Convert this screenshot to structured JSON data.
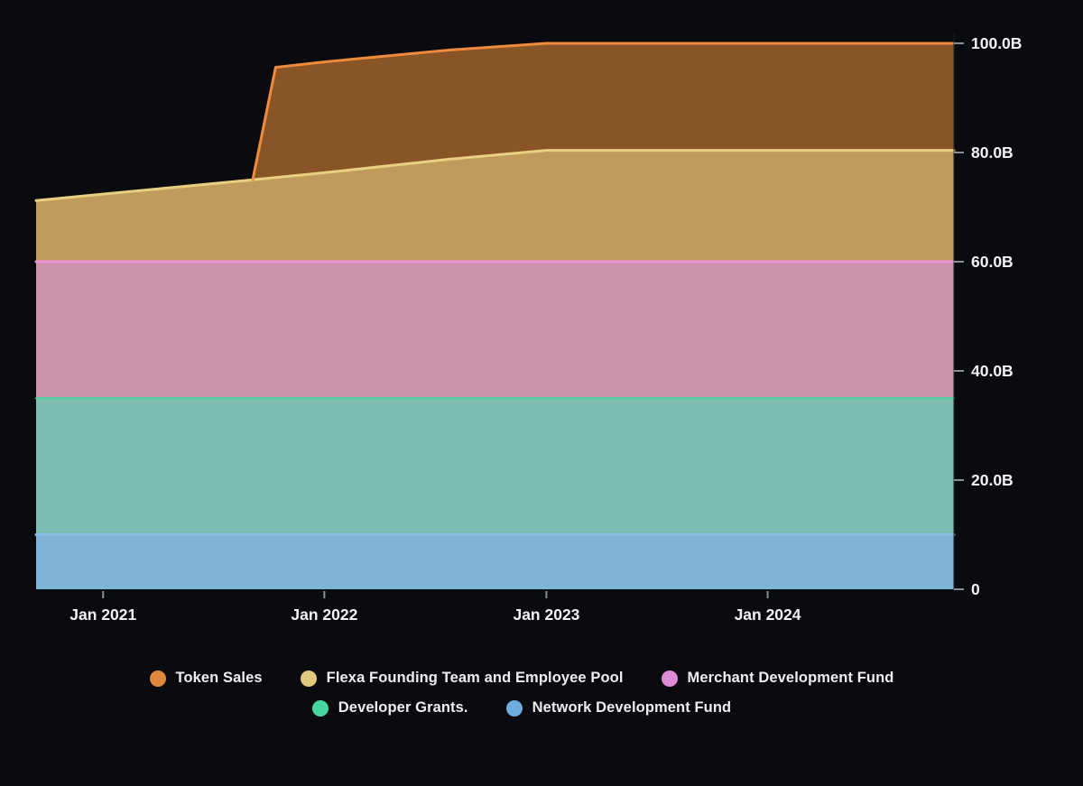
{
  "colors": {
    "background": "#0a0b0e",
    "axis_text": "#f1f3f4",
    "tick": "#8a9097",
    "axis_line": "#1d2024"
  },
  "chart_data": {
    "type": "area",
    "stacked": true,
    "title": "",
    "xlabel": "",
    "ylabel": "",
    "y_unit": "B",
    "ylim": [
      0,
      100
    ],
    "grid": false,
    "legend_position": "bottom",
    "y_axis_side": "right",
    "y_ticks": [
      {
        "value": 0,
        "label": "0"
      },
      {
        "value": 20,
        "label": "20.0B"
      },
      {
        "value": 40,
        "label": "40.0B"
      },
      {
        "value": 60,
        "label": "60.0B"
      },
      {
        "value": 80,
        "label": "80.0B"
      },
      {
        "value": 100,
        "label": "100.0B"
      }
    ],
    "x_ticks": [
      {
        "f": 0.073,
        "label": "Jan 2021"
      },
      {
        "f": 0.314,
        "label": "Jan 2022"
      },
      {
        "f": 0.556,
        "label": "Jan 2023"
      },
      {
        "f": 0.797,
        "label": "Jan 2024"
      }
    ],
    "baseline_rule": "each series stacks on the previous one; cumulative_top points are [x_fraction_of_plot_width, billions]",
    "series": [
      {
        "name": "Network Development Fund",
        "fill": "#7EB5D6",
        "line": "#8BBEE6",
        "cumulative_top": [
          [
            0,
            10
          ],
          [
            1,
            10
          ]
        ]
      },
      {
        "name": "Developer Grants.",
        "fill": "#7EBEB2",
        "line": "#43D5A0",
        "cumulative_top": [
          [
            0,
            35
          ],
          [
            1,
            35
          ]
        ]
      },
      {
        "name": "Merchant Development Fund",
        "fill": "#CF92AC",
        "line": "#EF93DF",
        "cumulative_top": [
          [
            0,
            60
          ],
          [
            1,
            60
          ]
        ]
      },
      {
        "name": "Flexa Founding Team and Employee Pool",
        "fill": "#BF9C5C",
        "line": "#E9CF82",
        "cumulative_top": [
          [
            0,
            71.2
          ],
          [
            0.236,
            75.0
          ],
          [
            0.314,
            76.3
          ],
          [
            0.452,
            78.8
          ],
          [
            0.556,
            80.4
          ],
          [
            1,
            80.4
          ]
        ]
      },
      {
        "name": "Token Sales",
        "fill": "#8A5526",
        "line": "#EE8B3D",
        "cumulative_top": [
          [
            0.236,
            75.0
          ],
          [
            0.261,
            95.6
          ],
          [
            0.314,
            96.6
          ],
          [
            0.452,
            98.8
          ],
          [
            0.556,
            100
          ],
          [
            1,
            100
          ]
        ]
      }
    ]
  },
  "legend": {
    "rows": [
      [
        {
          "label": "Token Sales",
          "color": "#E1883F"
        },
        {
          "label": "Flexa Founding Team and Employee Pool",
          "color": "#E2C77E"
        },
        {
          "label": "Merchant Development Fund",
          "color": "#DE8CD8"
        }
      ],
      [
        {
          "label": "Developer Grants.",
          "color": "#44D5A1"
        },
        {
          "label": "Network Development Fund",
          "color": "#6FACE0"
        }
      ]
    ]
  }
}
